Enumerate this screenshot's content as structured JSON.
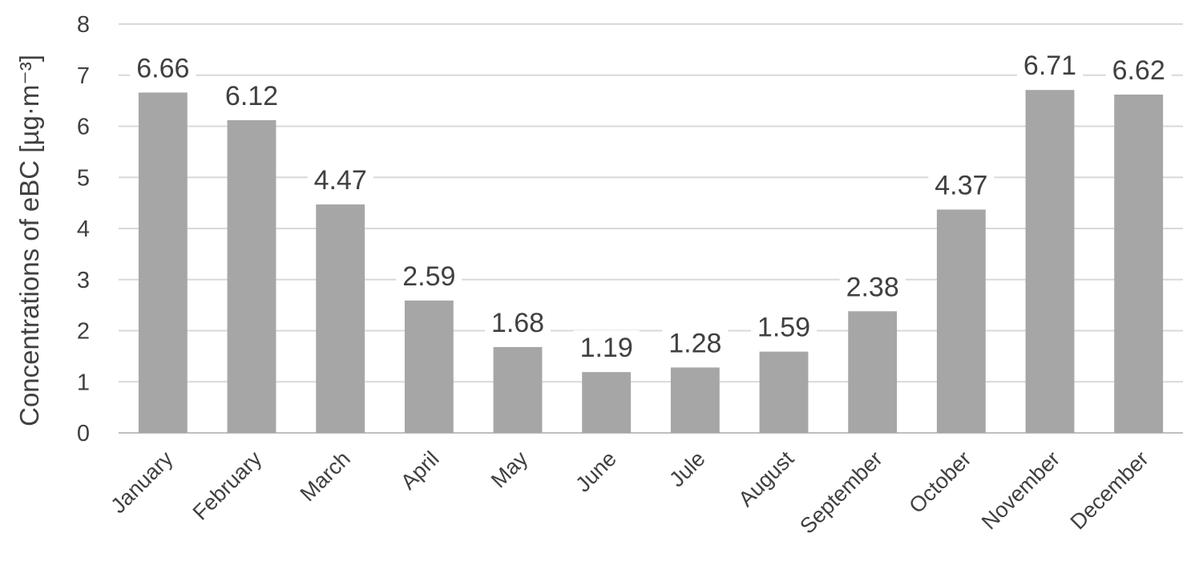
{
  "chart_data": {
    "type": "bar",
    "categories": [
      "January",
      "February",
      "March",
      "April",
      "May",
      "June",
      "Jule",
      "August",
      "September",
      "October",
      "November",
      "December"
    ],
    "values": [
      6.66,
      6.12,
      4.47,
      2.59,
      1.68,
      1.19,
      1.28,
      1.59,
      2.38,
      4.37,
      6.71,
      6.62
    ],
    "data_labels": [
      "6.66",
      "6.12",
      "4.47",
      "2.59",
      "1.68",
      "1.19",
      "1.28",
      "1.59",
      "2.38",
      "4.37",
      "6.71",
      "6.62"
    ],
    "title": "",
    "xlabel": "",
    "ylabel": "Concentrations of eBC [µg·m⁻³]",
    "ylim": [
      0,
      8
    ],
    "yticks": [
      "0",
      "1",
      "2",
      "3",
      "4",
      "5",
      "6",
      "7",
      "8"
    ],
    "grid": true,
    "legend": "none",
    "colors": {
      "bar": "#a6a6a6",
      "grid": "#d9d9d9",
      "text": "#404040"
    }
  }
}
